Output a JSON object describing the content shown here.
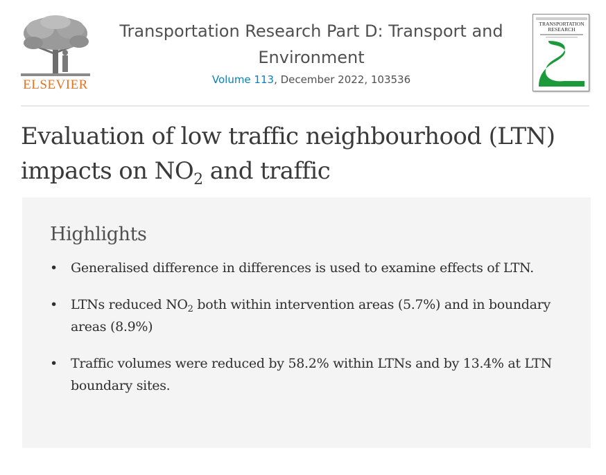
{
  "publisher": {
    "logo_word": "ELSEVIER"
  },
  "journal": {
    "title_line1": "Transportation Research Part D: Transport and",
    "title_line2": "Environment",
    "volume_link": "Volume 113",
    "issue_rest": ", December 2022, 103536"
  },
  "cover": {
    "line1": "TRANSPORTATION",
    "line2": "RESEARCH"
  },
  "article": {
    "title_part1": "Evaluation of low traffic neighbourhood (LTN)",
    "title_part2": "impacts on NO",
    "title_sub": "2",
    "title_part3": " and traffic"
  },
  "highlights": {
    "heading": "Highlights",
    "items": [
      {
        "bullet": "•",
        "text": "Generalised difference in differences is used to examine effects of LTN."
      },
      {
        "bullet": "•",
        "text_before": "LTNs reduced NO",
        "sub": "2",
        "text_after": " both within intervention areas (5.7%) and in boundary areas (8.9%)"
      },
      {
        "bullet": "•",
        "text": "Traffic volumes were reduced by 58.2% within LTNs and by 13.4% at LTN boundary sites."
      }
    ]
  },
  "colors": {
    "elsevier_orange": "#e9711c",
    "link_blue": "#0c7dbb",
    "cover_green": "#1c9a3a",
    "panel_bg": "#f4f4f4"
  },
  "icons": {
    "publisher_logo": "elsevier-tree-logo",
    "cover": "journal-cover-thumbnail"
  }
}
